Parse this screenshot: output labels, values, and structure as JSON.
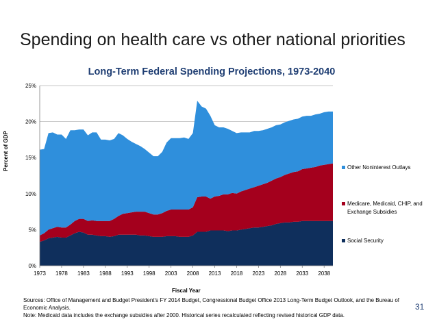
{
  "slide": {
    "title": "Spending on health care vs other national priorities",
    "page_number": "31",
    "sources": "Sources: Office of Management and Budget President's FY 2014 Budget, Congressional Budget Office 2013 Long-Term Budget Outlook, and the Bureau of Economic Analysis.",
    "note": "Note: Medicaid data includes the exchange subsidies after 2000. Historical series recalculated reflecting revised historical GDP data."
  },
  "colors": {
    "social_security": "#0f2f5c",
    "medicare": "#a4001d",
    "other": "#2f8fdc",
    "title": "#1f3e73"
  },
  "chart_data": {
    "type": "area",
    "stacked": true,
    "title": "Long-Term Federal Spending Projections, 1973-2040",
    "xlabel": "Fiscal Year",
    "ylabel": "Percent of GDP",
    "ylim": [
      0,
      25
    ],
    "yticks": [
      "0%",
      "5%",
      "10%",
      "15%",
      "20%",
      "25%"
    ],
    "ytick_values": [
      0,
      5,
      10,
      15,
      20,
      25
    ],
    "xticks": [
      "1973",
      "1978",
      "1983",
      "1988",
      "1993",
      "1998",
      "2003",
      "2008",
      "2013",
      "2018",
      "2023",
      "2028",
      "2033",
      "2038"
    ],
    "x": [
      1973,
      1974,
      1975,
      1976,
      1977,
      1978,
      1979,
      1980,
      1981,
      1982,
      1983,
      1984,
      1985,
      1986,
      1987,
      1988,
      1989,
      1990,
      1991,
      1992,
      1993,
      1994,
      1995,
      1996,
      1997,
      1998,
      1999,
      2000,
      2001,
      2002,
      2003,
      2004,
      2005,
      2006,
      2007,
      2008,
      2009,
      2010,
      2011,
      2012,
      2013,
      2014,
      2015,
      2016,
      2017,
      2018,
      2019,
      2020,
      2021,
      2022,
      2023,
      2024,
      2025,
      2026,
      2027,
      2028,
      2029,
      2030,
      2031,
      2032,
      2033,
      2034,
      2035,
      2036,
      2037,
      2038,
      2039,
      2040
    ],
    "series": [
      {
        "name": "Social Security",
        "values": [
          3.3,
          3.5,
          3.8,
          3.9,
          4.0,
          3.9,
          3.9,
          4.2,
          4.5,
          4.7,
          4.6,
          4.3,
          4.3,
          4.2,
          4.1,
          4.1,
          4.0,
          4.1,
          4.3,
          4.3,
          4.3,
          4.3,
          4.3,
          4.2,
          4.2,
          4.1,
          4.0,
          4.0,
          4.0,
          4.1,
          4.1,
          4.1,
          4.0,
          4.0,
          4.0,
          4.2,
          4.7,
          4.7,
          4.7,
          4.9,
          4.9,
          4.9,
          4.9,
          4.8,
          4.9,
          4.9,
          5.0,
          5.1,
          5.2,
          5.3,
          5.3,
          5.4,
          5.5,
          5.6,
          5.8,
          5.9,
          6.0,
          6.0,
          6.1,
          6.1,
          6.2,
          6.2,
          6.2,
          6.2,
          6.2,
          6.2,
          6.2,
          6.2
        ]
      },
      {
        "name": "Medicare, Medicaid, CHIP, and Exchange Subsidies",
        "values": [
          0.9,
          1.0,
          1.2,
          1.3,
          1.4,
          1.4,
          1.4,
          1.5,
          1.7,
          1.8,
          1.9,
          1.9,
          2.0,
          2.0,
          2.1,
          2.1,
          2.2,
          2.4,
          2.6,
          2.9,
          3.0,
          3.1,
          3.2,
          3.3,
          3.3,
          3.2,
          3.1,
          3.1,
          3.3,
          3.5,
          3.7,
          3.7,
          3.8,
          3.8,
          3.8,
          3.9,
          4.8,
          4.9,
          4.9,
          4.4,
          4.7,
          4.8,
          5.0,
          5.1,
          5.2,
          5.1,
          5.3,
          5.4,
          5.5,
          5.6,
          5.8,
          5.9,
          6.0,
          6.2,
          6.3,
          6.4,
          6.6,
          6.8,
          6.9,
          7.0,
          7.2,
          7.3,
          7.4,
          7.5,
          7.7,
          7.8,
          7.9,
          8.0
        ]
      },
      {
        "name": "Other Noninterest Outlays",
        "values": [
          11.9,
          11.7,
          13.4,
          13.3,
          12.8,
          12.9,
          12.3,
          13.1,
          12.6,
          12.4,
          12.4,
          11.9,
          12.2,
          12.3,
          11.3,
          11.3,
          11.2,
          11.1,
          11.5,
          10.9,
          10.3,
          9.8,
          9.4,
          9.1,
          8.7,
          8.4,
          8.1,
          8.1,
          8.5,
          9.5,
          9.9,
          9.9,
          9.9,
          10.0,
          9.8,
          10.3,
          13.4,
          12.5,
          12.2,
          11.5,
          9.9,
          9.5,
          9.3,
          9.1,
          8.6,
          8.4,
          8.2,
          8.0,
          7.8,
          7.8,
          7.6,
          7.5,
          7.5,
          7.4,
          7.4,
          7.3,
          7.3,
          7.3,
          7.3,
          7.3,
          7.3,
          7.3,
          7.2,
          7.3,
          7.2,
          7.3,
          7.3,
          7.2
        ]
      }
    ],
    "legend": [
      "Other Noninterest Outlays",
      "Medicare, Medicaid, CHIP, and Exchange Subsidies",
      "Social Security"
    ],
    "legend_position": "right"
  }
}
